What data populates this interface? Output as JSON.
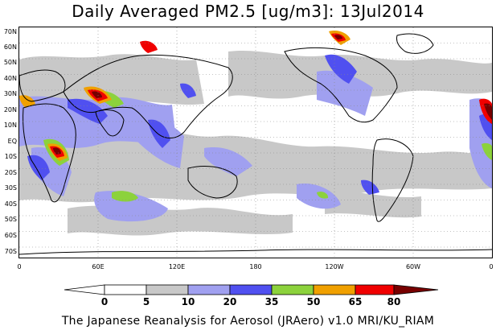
{
  "title": "Daily Averaged PM2.5 [ug/m3]: 13Jul2014",
  "lat_labels": [
    "70N",
    "60N",
    "50N",
    "40N",
    "30N",
    "20N",
    "10N",
    "EQ",
    "10S",
    "20S",
    "30S",
    "40S",
    "50S",
    "60S",
    "70S"
  ],
  "lon_labels": [
    "0",
    "60E",
    "120E",
    "180",
    "120W",
    "60W",
    "0"
  ],
  "colorbar": {
    "levels": [
      "0",
      "5",
      "10",
      "20",
      "35",
      "50",
      "65",
      "80"
    ],
    "colors": [
      "#ffffff",
      "#c8c8c8",
      "#a0a0f0",
      "#5050f0",
      "#8cd23c",
      "#f0a000",
      "#f00000",
      "#780000"
    ]
  },
  "footer": "The Japanese Reanalysis for Aerosol (JRAero) v1.0 MRI/KU_RIAM"
}
